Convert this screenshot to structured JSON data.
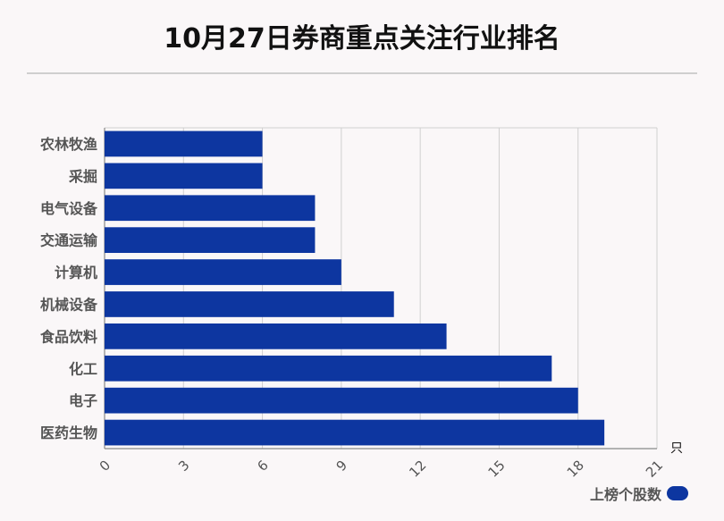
{
  "colors": {
    "bar": "#0d36a0",
    "grid": "#d0d0d0",
    "axis": "#888888"
  },
  "chart_data": {
    "type": "bar",
    "orientation": "horizontal",
    "title": "10月27日券商重点关注行业排名",
    "categories": [
      "农林牧渔",
      "采掘",
      "电气设备",
      "交通运输",
      "计算机",
      "机械设备",
      "食品饮料",
      "化工",
      "电子",
      "医药生物"
    ],
    "series": [
      {
        "name": "上榜个股数",
        "values": [
          6,
          6,
          8,
          8,
          9,
          11,
          13,
          17,
          18,
          19
        ]
      }
    ],
    "xlim": [
      0,
      21
    ],
    "xticks": [
      "0",
      "3",
      "6",
      "9",
      "12",
      "15",
      "18",
      "21"
    ],
    "xunit": "只",
    "grid": true,
    "legend_position": "bottom-right"
  }
}
